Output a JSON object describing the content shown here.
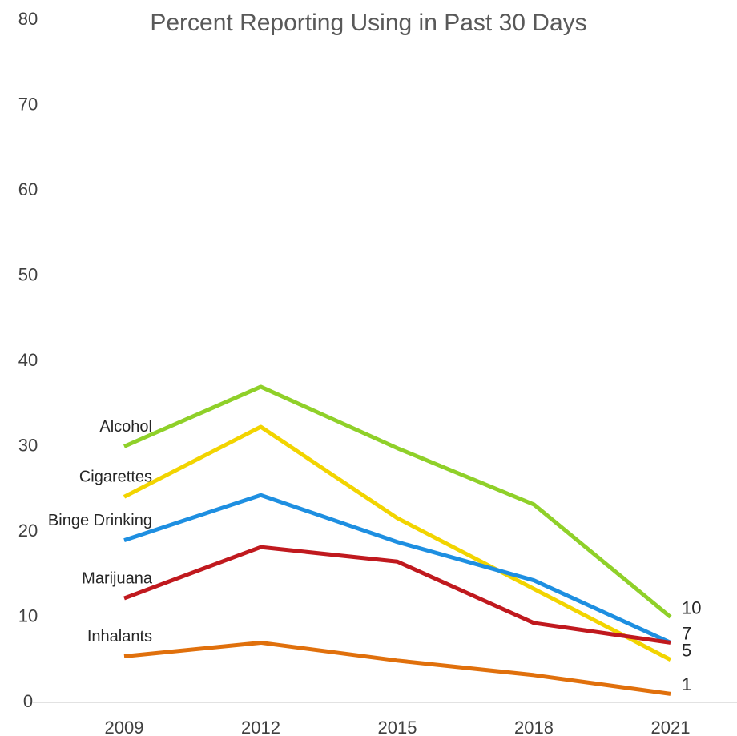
{
  "chart_data": {
    "type": "line",
    "title": "Percent Reporting Using in Past 30 Days",
    "categories": [
      "2009",
      "2012",
      "2015",
      "2018",
      "2021"
    ],
    "series": [
      {
        "name": "Alcohol",
        "color": "#8fd029",
        "values": [
          30,
          37,
          29.8,
          23.2,
          10
        ],
        "value_labels": [
          null,
          null,
          null,
          null,
          "10"
        ]
      },
      {
        "name": "Cigarettes",
        "color": "#f2d400",
        "values": [
          24.1,
          32.3,
          21.6,
          13.3,
          5
        ],
        "value_labels": [
          null,
          null,
          null,
          null,
          "5"
        ]
      },
      {
        "name": "Binge Drinking",
        "color": "#1e8fe1",
        "values": [
          19,
          24.3,
          18.8,
          14.3,
          7
        ],
        "value_labels": [
          null,
          null,
          null,
          null,
          "7"
        ]
      },
      {
        "name": "Marijuana",
        "color": "#c0191e",
        "values": [
          12.2,
          18.2,
          16.5,
          9.3,
          7
        ],
        "value_labels": [
          null,
          null,
          null,
          null,
          null
        ]
      },
      {
        "name": "Inhalants",
        "color": "#e0700c",
        "values": [
          5.4,
          7,
          4.9,
          3.2,
          1
        ],
        "value_labels": [
          null,
          null,
          null,
          null,
          "1"
        ]
      }
    ],
    "ylim": [
      0,
      80
    ],
    "yticks": [
      0,
      10,
      20,
      30,
      40,
      50,
      60,
      70,
      80
    ],
    "grid": false
  }
}
